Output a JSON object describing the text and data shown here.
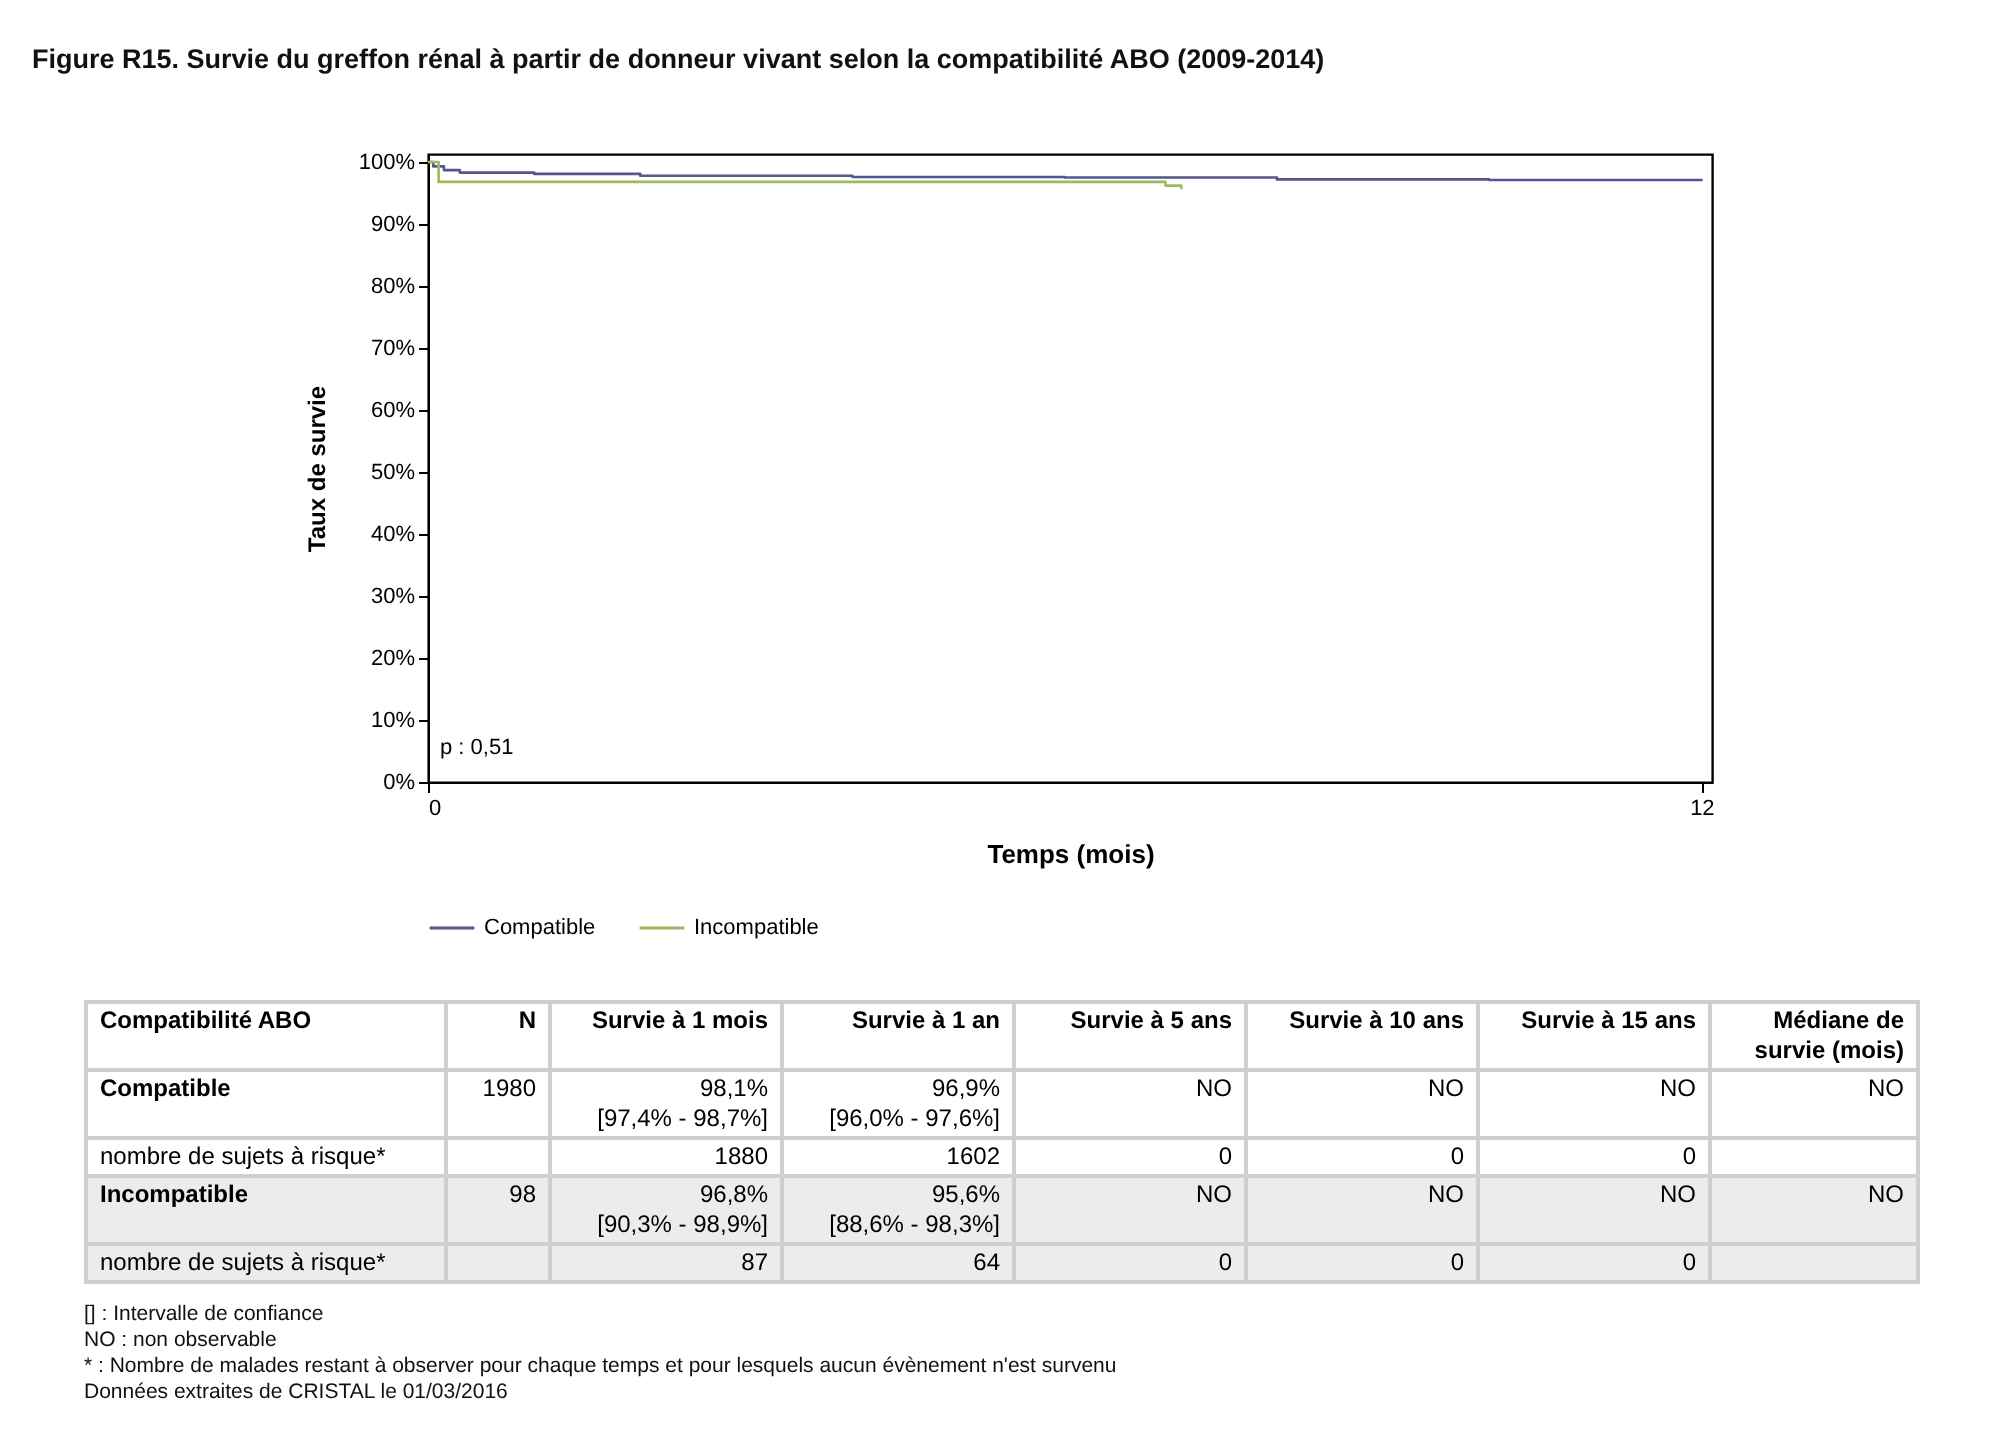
{
  "chart_data": {
    "type": "step",
    "title": "Figure R15. Survie du greffon rénal à partir de donneur vivant selon la compatibilité ABO (2009-2014)",
    "xlabel": "Temps (mois)",
    "ylabel": "Taux de survie",
    "xlim": [
      0,
      12.1
    ],
    "xticks": [
      0,
      12
    ],
    "ylim": [
      0,
      101.3
    ],
    "yticks": [
      {
        "value": 0,
        "label": "0%"
      },
      {
        "value": 10,
        "label": "10%"
      },
      {
        "value": 20,
        "label": "20%"
      },
      {
        "value": 30,
        "label": "30%"
      },
      {
        "value": 40,
        "label": "40%"
      },
      {
        "value": 50,
        "label": "50%"
      },
      {
        "value": 60,
        "label": "60%"
      },
      {
        "value": 70,
        "label": "70%"
      },
      {
        "value": 80,
        "label": "80%"
      },
      {
        "value": 90,
        "label": "90%"
      },
      {
        "value": 100,
        "label": "100%"
      }
    ],
    "grid": false,
    "legend": "bottom",
    "marker": "none",
    "line_style": "solid",
    "series": [
      {
        "name": "Compatible",
        "color": "#55558f",
        "x": [
          0,
          0.05,
          0.15,
          0.3,
          1,
          2,
          4,
          6,
          8,
          10,
          12
        ],
        "values": [
          100,
          99.3,
          98.7,
          98.3,
          98.1,
          97.8,
          97.6,
          97.5,
          97.2,
          97.1,
          96.9
        ]
      },
      {
        "name": "Incompatible",
        "color": "#9dbb5c",
        "x": [
          0,
          0.1,
          6.95,
          7.1
        ],
        "values": [
          100,
          96.8,
          96.2,
          95.6
        ]
      }
    ],
    "annotations": [
      "p : 0,51",
      "Compatibilité ABO",
      "N",
      "Survie à 1 mois",
      "Survie à 1 an",
      "Survie à 5 ans",
      "Survie à 10 ans",
      "Survie à 15 ans",
      "Médiane de\nsurvie (mois)",
      "Compatible",
      "1980",
      "98,1%\n[97,4% - 98,7%]",
      "96,9%\n[96,0% - 97,6%]",
      "NO",
      "NO",
      "NO",
      "NO",
      "nombre de sujets à risque*",
      null,
      "1880",
      "1602",
      "0",
      "0",
      "0",
      null,
      "Incompatible",
      "98",
      "96,8%\n[90,3% - 98,9%]",
      "95,6%\n[88,6% - 98,3%]",
      "NO",
      "NO",
      "NO",
      "NO",
      "nombre de sujets à risque*",
      null,
      "87",
      "64",
      "0",
      "0",
      "0",
      null,
      "[] : Intervalle de confiance",
      "NO : non observable",
      "* : Nombre de malades restant à observer pour chaque temps et pour lesquels aucun évènement n'est survenu",
      "Données extraites de CRISTAL le 01/03/2016"
    ]
  }
}
